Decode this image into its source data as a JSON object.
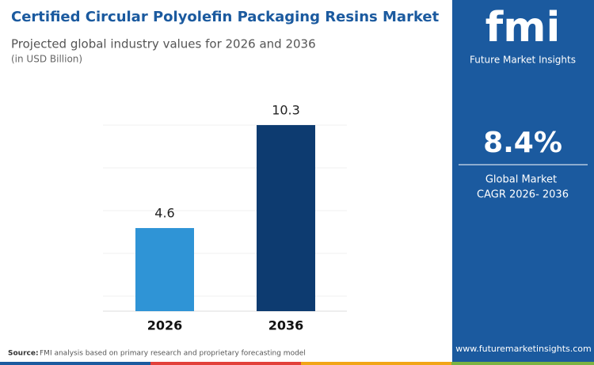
{
  "chart_data": {
    "type": "bar",
    "title": "Certified Circular Polyolefin Packaging Resins Market",
    "subtitle": "Projected global industry values for 2026 and 2036",
    "unit_note": "(in USD Billion)",
    "categories": [
      "2026",
      "2036"
    ],
    "values": [
      4.6,
      10.3
    ],
    "colors": [
      "#2f94d6",
      "#0d3b70"
    ],
    "ylim": [
      0,
      11
    ]
  },
  "panel": {
    "logo": "fmi",
    "brand": "Future Market Insights",
    "cagr": "8.4%",
    "cagr_label_1": "Global Market",
    "cagr_label_2": "CAGR 2026- 2036",
    "website": "www.futuremarketinsights.com"
  },
  "footer": {
    "source_label": "Source:",
    "source_text": "FMI analysis based on primary research and proprietary forecasting model"
  }
}
